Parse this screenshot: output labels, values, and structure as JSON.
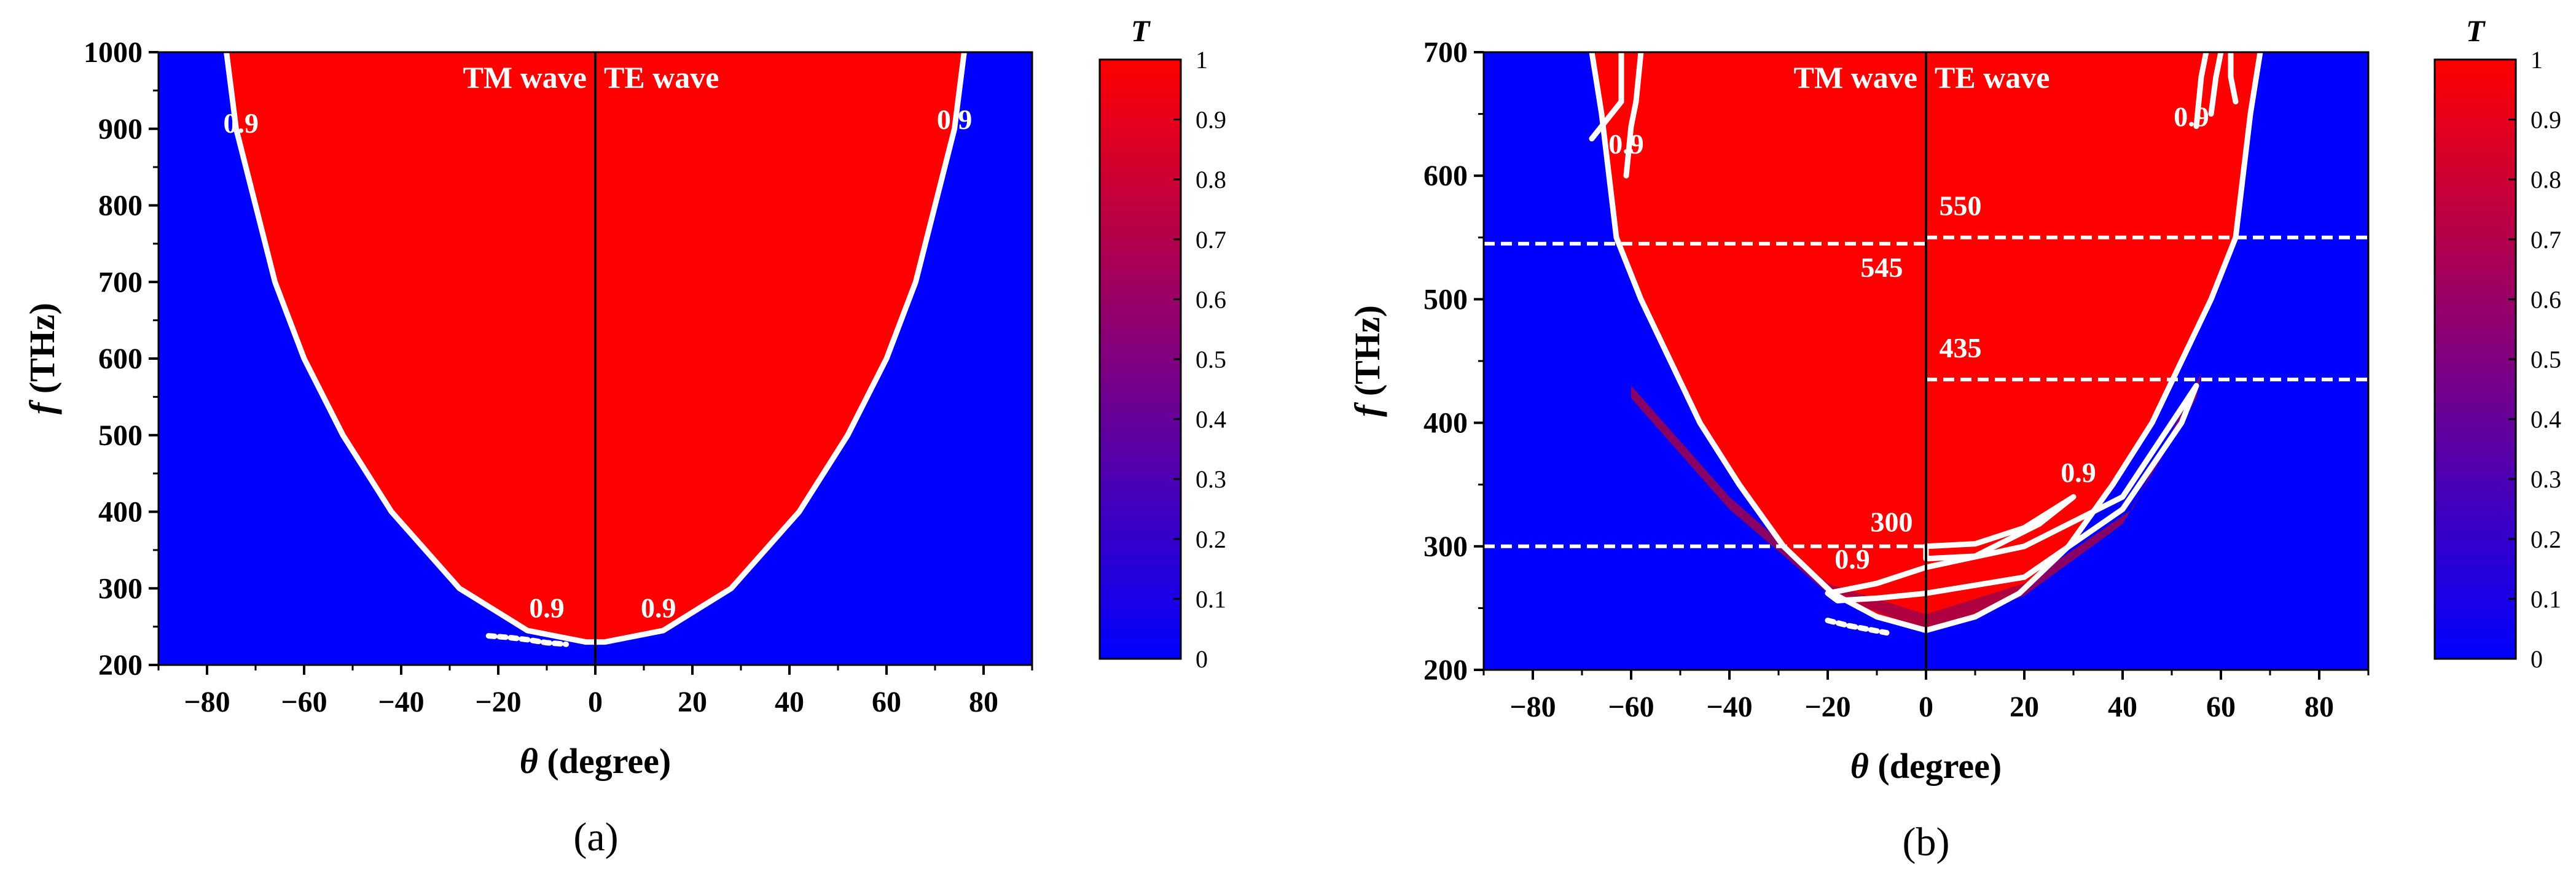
{
  "chart_data": [
    {
      "type": "heatmap",
      "panel_label": "(a)",
      "title": "",
      "xlabel_symbol": "θ",
      "xlabel_text": " (degree)",
      "ylabel_symbol": "f",
      "ylabel_text": " (THz)",
      "xlim": [
        -90,
        90
      ],
      "ylim": [
        200,
        1000
      ],
      "xticks": [
        -80,
        -60,
        -40,
        -20,
        0,
        20,
        40,
        60,
        80
      ],
      "xtick_labels": [
        "−80",
        "−60",
        "−40",
        "−20",
        "0",
        "20",
        "40",
        "60",
        "80"
      ],
      "yticks": [
        200,
        300,
        400,
        500,
        600,
        700,
        800,
        900,
        1000
      ],
      "ytick_labels": [
        "200",
        "300",
        "400",
        "500",
        "600",
        "700",
        "800",
        "900",
        "1000"
      ],
      "left_label": "TM wave",
      "right_label": "TE wave",
      "high_color": "#ff0000",
      "low_color": "#0000ff",
      "contour_color": "#ffffff",
      "divider_color": "#000000",
      "contour_level": 0.9,
      "contour_tm": [
        [
          -76,
          1000
        ],
        [
          -74,
          900
        ],
        [
          -70,
          800
        ],
        [
          -66,
          700
        ],
        [
          -60,
          600
        ],
        [
          -52,
          500
        ],
        [
          -42,
          400
        ],
        [
          -28,
          300
        ],
        [
          -14,
          245
        ],
        [
          -2,
          230
        ],
        [
          0,
          230
        ]
      ],
      "contour_te": [
        [
          0,
          230
        ],
        [
          2,
          230
        ],
        [
          14,
          245
        ],
        [
          28,
          300
        ],
        [
          42,
          400
        ],
        [
          52,
          500
        ],
        [
          60,
          600
        ],
        [
          66,
          700
        ],
        [
          70,
          800
        ],
        [
          74,
          900
        ],
        [
          76,
          1000
        ]
      ],
      "contour_tails": [
        [
          [
            -22,
            238
          ],
          [
            -18,
            236
          ],
          [
            -14,
            233
          ],
          [
            -10,
            229
          ],
          [
            -6,
            227
          ]
        ]
      ],
      "contour_labels": [
        {
          "text": "0.9",
          "x": -73,
          "y": 895
        },
        {
          "text": "0.9",
          "x": 74,
          "y": 900
        },
        {
          "text": "0.9",
          "x": -10,
          "y": 262
        },
        {
          "text": "0.9",
          "x": 13,
          "y": 262
        }
      ],
      "guide_lines": [],
      "guide_labels": [],
      "colorbar": {
        "title": "T",
        "range": [
          0,
          1
        ],
        "ticks": [
          0,
          0.1,
          0.2,
          0.3,
          0.4,
          0.5,
          0.6,
          0.7,
          0.8,
          0.9,
          1
        ],
        "tick_labels": [
          "0",
          "0.1",
          "0.2",
          "0.3",
          "0.4",
          "0.5",
          "0.6",
          "0.7",
          "0.8",
          "0.9",
          "1"
        ],
        "colors": [
          "#0000ff",
          "#800080",
          "#ff0000"
        ]
      }
    },
    {
      "type": "heatmap",
      "panel_label": "(b)",
      "title": "",
      "xlabel_symbol": "θ",
      "xlabel_text": " (degree)",
      "ylabel_symbol": "f",
      "ylabel_text": " (THz)",
      "xlim": [
        -90,
        90
      ],
      "ylim": [
        200,
        700
      ],
      "xticks": [
        -80,
        -60,
        -40,
        -20,
        0,
        20,
        40,
        60,
        80
      ],
      "xtick_labels": [
        "−80",
        "−60",
        "−40",
        "−20",
        "0",
        "20",
        "40",
        "60",
        "80"
      ],
      "yticks": [
        200,
        300,
        400,
        500,
        600,
        700
      ],
      "ytick_labels": [
        "200",
        "300",
        "400",
        "500",
        "600",
        "700"
      ],
      "left_label": "TM wave",
      "right_label": "TE wave",
      "high_color": "#ff0000",
      "low_color": "#0000ff",
      "contour_color": "#ffffff",
      "divider_color": "#000000",
      "contour_level": 0.9,
      "contour_tm": [
        [
          -68,
          700
        ],
        [
          -66,
          650
        ],
        [
          -63,
          550
        ],
        [
          -58,
          500
        ],
        [
          -52,
          450
        ],
        [
          -46,
          400
        ],
        [
          -38,
          350
        ],
        [
          -29,
          300
        ],
        [
          -19,
          262
        ],
        [
          -10,
          243
        ],
        [
          0,
          232
        ]
      ],
      "contour_te": [
        [
          0,
          232
        ],
        [
          10,
          243
        ],
        [
          19,
          262
        ],
        [
          29,
          300
        ],
        [
          38,
          350
        ],
        [
          46,
          400
        ],
        [
          52,
          450
        ],
        [
          58,
          500
        ],
        [
          63,
          550
        ],
        [
          66,
          650
        ],
        [
          68,
          700
        ]
      ],
      "contour_tails": [
        [
          [
            -20,
            240
          ],
          [
            -16,
            236
          ],
          [
            -12,
            233
          ],
          [
            -8,
            230
          ]
        ],
        [
          [
            -62,
            700
          ],
          [
            -62,
            660
          ],
          [
            -66,
            640
          ],
          [
            -68,
            630
          ]
        ],
        [
          [
            -61,
            600
          ],
          [
            -60,
            640
          ],
          [
            -59,
            660
          ],
          [
            -58,
            700
          ]
        ],
        [
          [
            55,
            640
          ],
          [
            56,
            680
          ],
          [
            57,
            700
          ]
        ],
        [
          [
            58,
            650
          ],
          [
            59,
            680
          ],
          [
            60,
            700
          ]
        ],
        [
          [
            62,
            700
          ],
          [
            62,
            680
          ],
          [
            63,
            660
          ]
        ]
      ],
      "contour_loops": [
        [
          [
            0,
            300
          ],
          [
            10,
            302
          ],
          [
            20,
            315
          ],
          [
            30,
            340
          ],
          [
            23,
            318
          ],
          [
            10,
            292
          ],
          [
            0,
            290
          ]
        ],
        [
          [
            -20,
            262
          ],
          [
            -10,
            270
          ],
          [
            0,
            283
          ],
          [
            20,
            300
          ],
          [
            40,
            340
          ],
          [
            55,
            430
          ],
          [
            52,
            400
          ],
          [
            40,
            330
          ],
          [
            20,
            275
          ],
          [
            0,
            262
          ],
          [
            -10,
            258
          ],
          [
            -18,
            256
          ]
        ]
      ],
      "purple_band": [
        [
          -60,
          420
        ],
        [
          -40,
          330
        ],
        [
          -20,
          262
        ],
        [
          0,
          232
        ],
        [
          20,
          260
        ],
        [
          40,
          318
        ],
        [
          55,
          420
        ],
        [
          56,
          440
        ],
        [
          42,
          330
        ],
        [
          20,
          270
        ],
        [
          0,
          245
        ],
        [
          -20,
          270
        ],
        [
          -40,
          340
        ],
        [
          -60,
          430
        ]
      ],
      "contour_labels": [
        {
          "text": "0.9",
          "x": -61,
          "y": 618
        },
        {
          "text": "0.9",
          "x": 54,
          "y": 640
        },
        {
          "text": "0.9",
          "x": -15,
          "y": 282
        },
        {
          "text": "0.9",
          "x": 31,
          "y": 352
        }
      ],
      "guide_lines": [
        {
          "y": 545,
          "x0": -90,
          "x1": 0
        },
        {
          "y": 550,
          "x0": 0,
          "x1": 90
        },
        {
          "y": 435,
          "x0": 0,
          "x1": 90
        },
        {
          "y": 300,
          "x0": -90,
          "x1": 0
        }
      ],
      "guide_labels": [
        {
          "text": "550",
          "x": 7,
          "y": 568
        },
        {
          "text": "545",
          "x": -9,
          "y": 518
        },
        {
          "text": "435",
          "x": 7,
          "y": 453
        },
        {
          "text": "300",
          "x": -7,
          "y": 312
        }
      ],
      "colorbar": {
        "title": "T",
        "range": [
          0,
          1
        ],
        "ticks": [
          0,
          0.1,
          0.2,
          0.3,
          0.4,
          0.5,
          0.6,
          0.7,
          0.8,
          0.9,
          1
        ],
        "tick_labels": [
          "0",
          "0.1",
          "0.2",
          "0.3",
          "0.4",
          "0.5",
          "0.6",
          "0.7",
          "0.8",
          "0.9",
          "1"
        ],
        "colors": [
          "#0000ff",
          "#800080",
          "#ff0000"
        ]
      }
    }
  ]
}
